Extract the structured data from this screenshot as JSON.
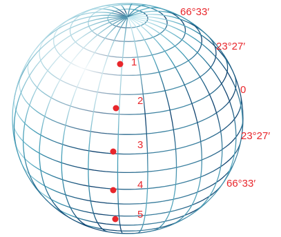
{
  "latitude_labels": [
    {
      "id": "lat-66-33-n",
      "text": "66°33′"
    },
    {
      "id": "lat-23-27-n",
      "text": "23°27′"
    },
    {
      "id": "lat-0",
      "text": "0"
    },
    {
      "id": "lat-23-27-s",
      "text": "23°27′"
    },
    {
      "id": "lat-66-33-s",
      "text": "66°33′"
    }
  ],
  "points": [
    {
      "id": "point-1",
      "text": "1"
    },
    {
      "id": "point-2",
      "text": "2"
    },
    {
      "id": "point-3",
      "text": "3"
    },
    {
      "id": "point-4",
      "text": "4"
    },
    {
      "id": "point-5",
      "text": "5"
    }
  ],
  "colors": {
    "grid_dark": "#0b3d6b",
    "grid_light": "#8fd0e0",
    "marker": "#e8262b"
  }
}
